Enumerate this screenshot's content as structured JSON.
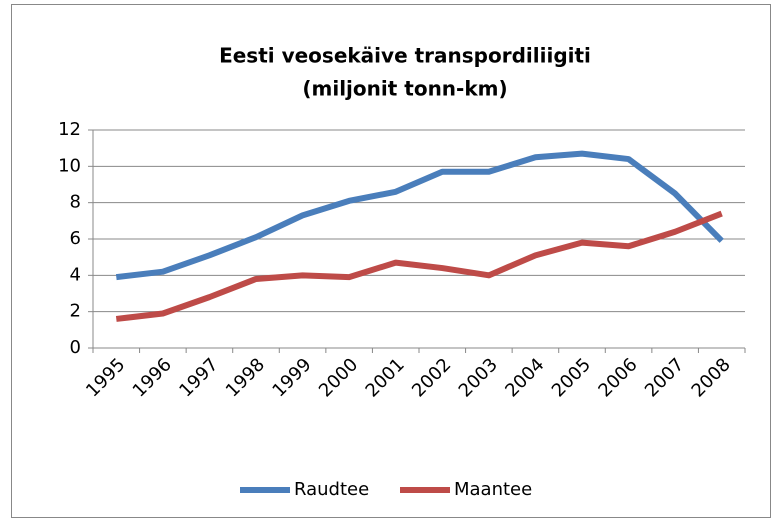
{
  "chart_data": {
    "type": "line",
    "title": "Eesti veosekäive transpordiliigiti",
    "subtitle": "(miljonit tonn-km)",
    "categories": [
      "1995",
      "1996",
      "1997",
      "1998",
      "1999",
      "2000",
      "2001",
      "2002",
      "2003",
      "2004",
      "2005",
      "2006",
      "2007",
      "2008"
    ],
    "series": [
      {
        "name": "Raudtee",
        "color": "#4a7ebb",
        "values": [
          3.9,
          4.2,
          5.1,
          6.1,
          7.3,
          8.1,
          8.6,
          9.7,
          9.7,
          10.5,
          10.7,
          10.4,
          8.5,
          5.9
        ]
      },
      {
        "name": "Maantee",
        "color": "#be4b48",
        "values": [
          1.6,
          1.9,
          2.8,
          3.8,
          4.0,
          3.9,
          4.7,
          4.4,
          4.0,
          5.1,
          5.8,
          5.6,
          6.4,
          7.4
        ]
      }
    ],
    "ylim": [
      0,
      12
    ],
    "yticks": [
      0,
      2,
      4,
      6,
      8,
      10,
      12
    ],
    "grid": true,
    "legend": "bottom"
  }
}
